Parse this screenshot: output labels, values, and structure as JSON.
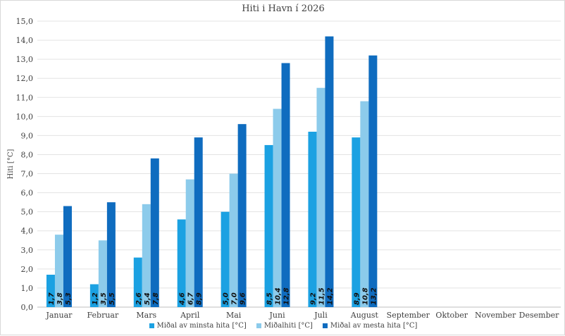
{
  "chart_data": {
    "type": "bar",
    "title": "Hiti i Havn í 2026",
    "ylabel": "Hiti [°C]",
    "xlabel": "",
    "ylim": [
      0,
      15
    ],
    "ytick_step": 1,
    "grid": true,
    "legend_position": "bottom",
    "categories": [
      "Januar",
      "Februar",
      "Mars",
      "April",
      "Mai",
      "Juni",
      "Juli",
      "August",
      "September",
      "Oktober",
      "November",
      "Desember"
    ],
    "y_tick_labels": [
      "0,0",
      "1,0",
      "2,0",
      "3,0",
      "4,0",
      "5,0",
      "6,0",
      "7,0",
      "8,0",
      "9,0",
      "10,0",
      "11,0",
      "12,0",
      "13,0",
      "14,0",
      "15,0"
    ],
    "series": [
      {
        "name": "Miðal av minsta hita [°C]",
        "color": "#1ba1e2",
        "values": [
          1.7,
          1.2,
          2.6,
          4.6,
          5.0,
          8.5,
          9.2,
          8.9,
          null,
          null,
          null,
          null
        ],
        "labels": [
          "1,7",
          "1,2",
          "2,6",
          "4,6",
          "5,0",
          "8,5",
          "9,2",
          "8,9",
          "",
          "",
          "",
          ""
        ]
      },
      {
        "name": "Miðalhiti [°C]",
        "color": "#8ccbeb",
        "values": [
          3.8,
          3.5,
          5.4,
          6.7,
          7.0,
          10.4,
          11.5,
          10.8,
          null,
          null,
          null,
          null
        ],
        "labels": [
          "3,8",
          "3,5",
          "5,4",
          "6,7",
          "7,0",
          "10,4",
          "11,5",
          "10,8",
          "",
          "",
          "",
          ""
        ]
      },
      {
        "name": "Miðal av mesta hita [°C]",
        "color": "#0f6cbf",
        "values": [
          5.3,
          5.5,
          7.8,
          8.9,
          9.6,
          12.8,
          14.2,
          13.2,
          null,
          null,
          null,
          null
        ],
        "labels": [
          "5,3",
          "5,5",
          "7,8",
          "8,9",
          "9,6",
          "12,8",
          "14,2",
          "13,2",
          "",
          "",
          "",
          ""
        ]
      }
    ]
  }
}
